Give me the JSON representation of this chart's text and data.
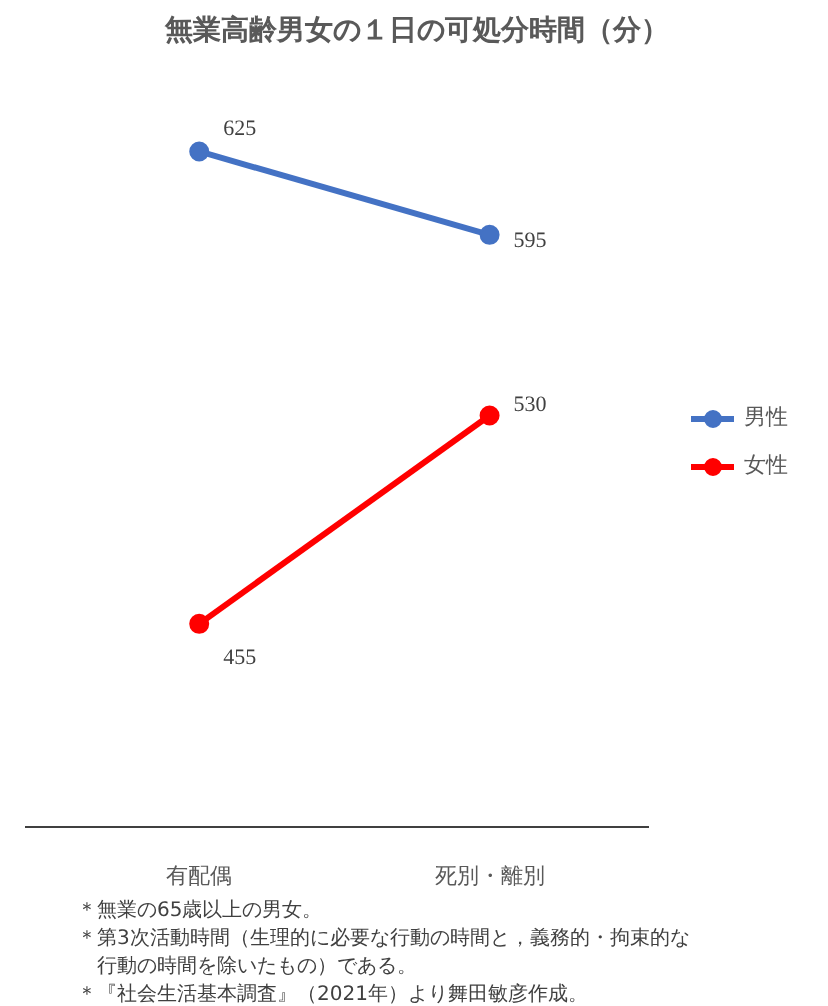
{
  "chart_data": {
    "type": "line",
    "title": "無業高齢男女の１日の可処分時間（分）",
    "categories": [
      "有配偶",
      "死別・離別"
    ],
    "series": [
      {
        "name": "男性",
        "color": "#4472c4",
        "values": [
          625,
          595
        ]
      },
      {
        "name": "女性",
        "color": "#ff0000",
        "values": [
          455,
          530
        ]
      }
    ],
    "data_labels": true,
    "marker": "circle",
    "line_style": "solid",
    "legend": "right",
    "tick_labels": "x",
    "annotations": [
      "＊無業の65歳以上の男女。",
      "＊第3次活動時間（生理的に必要な行動の時間と，義務的・拘束的な行動の時間を除いたもの）である。",
      "＊『社会生活基本調査』（2021年）より舞田敏彦作成。"
    ]
  }
}
